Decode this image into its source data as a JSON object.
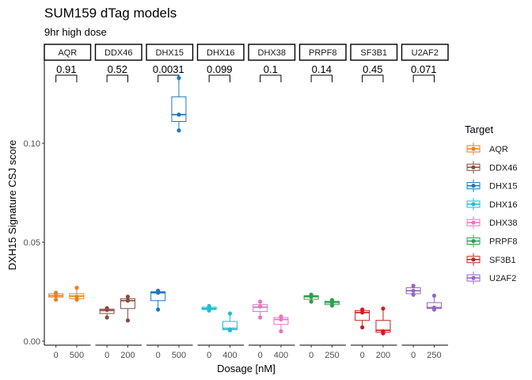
{
  "chart_data": {
    "type": "box",
    "title": "SUM159 dTag models",
    "subtitle": "9hr high dose",
    "xlabel": "Dosage [nM]",
    "ylabel": "DXH15 Signature CSJ score",
    "ylim": [
      -0.002,
      0.142
    ],
    "yticks": [
      0.0,
      0.05,
      0.1
    ],
    "ytick_labels": [
      "0.00",
      "0.05",
      "0.10"
    ],
    "grid": false,
    "legend": {
      "title": "Target",
      "position": "right",
      "entries": [
        "AQR",
        "DDX46",
        "DHX15",
        "DHX16",
        "DHX38",
        "PRPF8",
        "SF3B1",
        "U2AF2"
      ]
    },
    "panels": [
      {
        "target": "AQR",
        "color": "#e8811f",
        "pvalue": "0.91",
        "groups": [
          {
            "dose": "0",
            "box": [
              0.0215,
              0.0223,
              0.023,
              0.024,
              0.0248
            ],
            "points": [
              0.021,
              0.023,
              0.0245
            ]
          },
          {
            "dose": "500",
            "box": [
              0.021,
              0.0215,
              0.0228,
              0.024,
              0.027
            ],
            "points": [
              0.021,
              0.0225,
              0.027
            ]
          }
        ]
      },
      {
        "target": "DDX46",
        "color": "#8b4a3e",
        "pvalue": "0.52",
        "groups": [
          {
            "dose": "0",
            "box": [
              0.012,
              0.014,
              0.0155,
              0.0162,
              0.0167
            ],
            "points": [
              0.012,
              0.0158,
              0.0167
            ]
          },
          {
            "dose": "200",
            "box": [
              0.0105,
              0.0165,
              0.0205,
              0.0215,
              0.0228
            ],
            "points": [
              0.0105,
              0.0205,
              0.0225
            ]
          }
        ]
      },
      {
        "target": "DHX15",
        "color": "#1f78bf",
        "pvalue": "0.0031",
        "groups": [
          {
            "dose": "0",
            "box": [
              0.016,
              0.0205,
              0.0245,
              0.025,
              0.0255
            ],
            "points": [
              0.016,
              0.0245,
              0.0255
            ]
          },
          {
            "dose": "500",
            "box": [
              0.1065,
              0.111,
              0.1145,
              0.1235,
              0.133
            ],
            "points": [
              0.1065,
              0.1145,
              0.133
            ]
          }
        ]
      },
      {
        "target": "DHX16",
        "color": "#1fbfcf",
        "pvalue": "0.099",
        "groups": [
          {
            "dose": "0",
            "box": [
              0.0155,
              0.016,
              0.0165,
              0.0172,
              0.0178
            ],
            "points": [
              0.0155,
              0.0168,
              0.0178
            ]
          },
          {
            "dose": "400",
            "box": [
              0.0055,
              0.0058,
              0.0065,
              0.01,
              0.014
            ],
            "points": [
              0.0055,
              0.006,
              0.014
            ]
          }
        ]
      },
      {
        "target": "DHX38",
        "color": "#e377c2",
        "pvalue": "0.1",
        "groups": [
          {
            "dose": "0",
            "box": [
              0.012,
              0.015,
              0.0172,
              0.0185,
              0.02
            ],
            "points": [
              0.012,
              0.0175,
              0.02
            ]
          },
          {
            "dose": "400",
            "box": [
              0.005,
              0.0085,
              0.011,
              0.012,
              0.0125
            ],
            "points": [
              0.005,
              0.011,
              0.0125
            ]
          }
        ]
      },
      {
        "target": "PRPF8",
        "color": "#2ca04c",
        "pvalue": "0.14",
        "groups": [
          {
            "dose": "0",
            "box": [
              0.02,
              0.0212,
              0.0225,
              0.023,
              0.0235
            ],
            "points": [
              0.02,
              0.0225,
              0.0235
            ]
          },
          {
            "dose": "250",
            "box": [
              0.018,
              0.0185,
              0.0195,
              0.0202,
              0.0208
            ],
            "points": [
              0.018,
              0.0195,
              0.0208
            ]
          }
        ]
      },
      {
        "target": "SF3B1",
        "color": "#c8201c",
        "pvalue": "0.45",
        "groups": [
          {
            "dose": "0",
            "box": [
              0.007,
              0.0105,
              0.0145,
              0.0155,
              0.016
            ],
            "points": [
              0.007,
              0.0145,
              0.016
            ]
          },
          {
            "dose": "200",
            "box": [
              0.004,
              0.0045,
              0.0055,
              0.0105,
              0.0165
            ],
            "points": [
              0.004,
              0.005,
              0.0165
            ]
          }
        ]
      },
      {
        "target": "U2AF2",
        "color": "#9467bd",
        "pvalue": "0.071",
        "groups": [
          {
            "dose": "0",
            "box": [
              0.0235,
              0.024,
              0.0255,
              0.027,
              0.028
            ],
            "points": [
              0.0235,
              0.0255,
              0.028
            ]
          },
          {
            "dose": "250",
            "box": [
              0.016,
              0.0165,
              0.017,
              0.0195,
              0.023
            ],
            "points": [
              0.016,
              0.017,
              0.023
            ]
          }
        ]
      }
    ]
  }
}
